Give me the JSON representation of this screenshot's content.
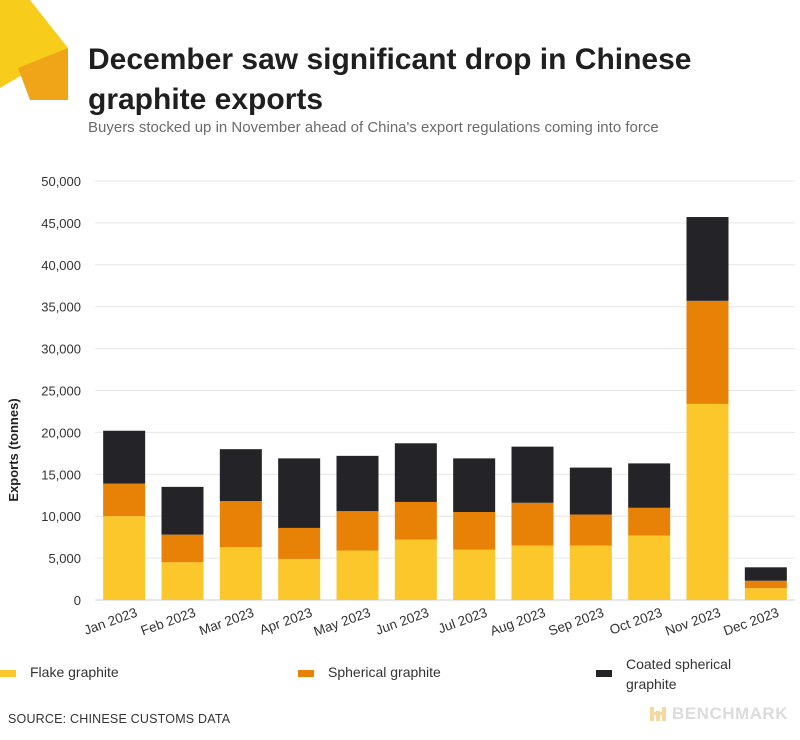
{
  "header": {
    "title": "December saw significant drop in Chinese graphite exports",
    "subtitle": "Buyers stocked up in November ahead of China's export regulations coming into force"
  },
  "colors": {
    "flake": "#FBC72B",
    "spherical": "#E88207",
    "coated": "#242428",
    "grid": "#e6e6e6",
    "logo_light": "#F8CC1B",
    "logo_dark": "#F0A518"
  },
  "chart_data": {
    "type": "bar",
    "stacked": true,
    "title": "December saw significant drop in Chinese graphite exports",
    "xlabel": "",
    "ylabel": "Exports (tonnes)",
    "ylim": [
      0,
      50000
    ],
    "yticks": [
      0,
      5000,
      10000,
      15000,
      20000,
      25000,
      30000,
      35000,
      40000,
      45000,
      50000
    ],
    "ytick_labels": [
      "0",
      "5,000",
      "10,000",
      "15,000",
      "20,000",
      "25,000",
      "30,000",
      "35,000",
      "40,000",
      "45,000",
      "50,000"
    ],
    "grid": true,
    "categories": [
      "Jan 2023",
      "Feb 2023",
      "Mar 2023",
      "Apr 2023",
      "May 2023",
      "Jun 2023",
      "Jul 2023",
      "Aug 2023",
      "Sep 2023",
      "Oct 2023",
      "Nov 2023",
      "Dec 2023"
    ],
    "series": [
      {
        "name": "Flake graphite",
        "color": "#FBC72B",
        "values": [
          10000,
          4500,
          6300,
          4900,
          5900,
          7200,
          6000,
          6500,
          6500,
          7700,
          23400,
          1400
        ]
      },
      {
        "name": "Spherical graphite",
        "color": "#E88207",
        "values": [
          3900,
          3300,
          5500,
          3700,
          4700,
          4500,
          4500,
          5100,
          3700,
          3300,
          12300,
          900
        ]
      },
      {
        "name": "Coated spherical graphite",
        "color": "#242428",
        "values": [
          6300,
          5700,
          6200,
          8300,
          6600,
          7000,
          6400,
          6700,
          5600,
          5300,
          10000,
          1600
        ]
      }
    ],
    "legend_position": "bottom"
  },
  "legend": {
    "flake_label": "Flake graphite",
    "spherical_label": "Spherical graphite",
    "coated_label_line1": "Coated spherical",
    "coated_label_line2": "graphite"
  },
  "footer": {
    "source": "SOURCE: CHINESE CUSTOMS DATA",
    "brand": "BENCHMARK",
    "brand_icon": "benchmark-logo-icon"
  }
}
